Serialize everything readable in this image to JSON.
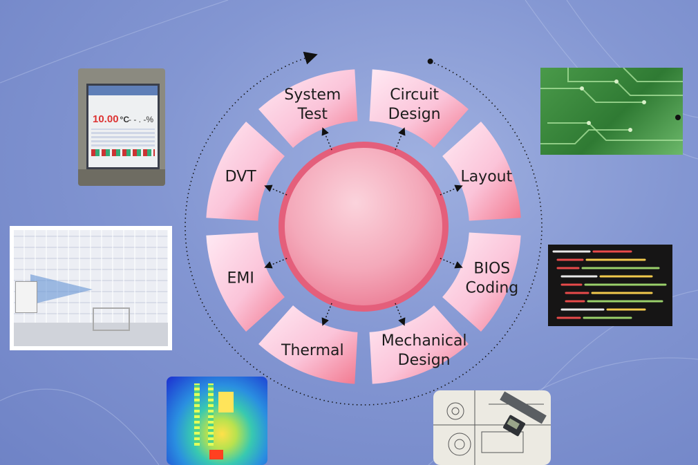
{
  "diagram": {
    "segments": [
      {
        "lines": [
          "Circuit",
          "Design"
        ]
      },
      {
        "lines": [
          "Layout"
        ]
      },
      {
        "lines": [
          "BIOS",
          "Coding"
        ]
      },
      {
        "lines": [
          "Mechanical",
          "Design"
        ]
      },
      {
        "lines": [
          "Thermal"
        ]
      },
      {
        "lines": [
          "EMI"
        ]
      },
      {
        "lines": [
          "DVT"
        ]
      },
      {
        "lines": [
          "System",
          "Test"
        ]
      }
    ],
    "center_label": ""
  },
  "photos": {
    "chamber_display_reading": "10.00",
    "chamber_display_unit": "°C",
    "chamber_display_humidity": "- - . -",
    "chamber_display_humidity_unit": "%"
  },
  "colors": {
    "background": "#8396d2",
    "segment_light": "#ffe4f1",
    "segment_dark": "#f0607c",
    "center_fill": "#f4a3b5",
    "center_ring": "#e05b77"
  }
}
